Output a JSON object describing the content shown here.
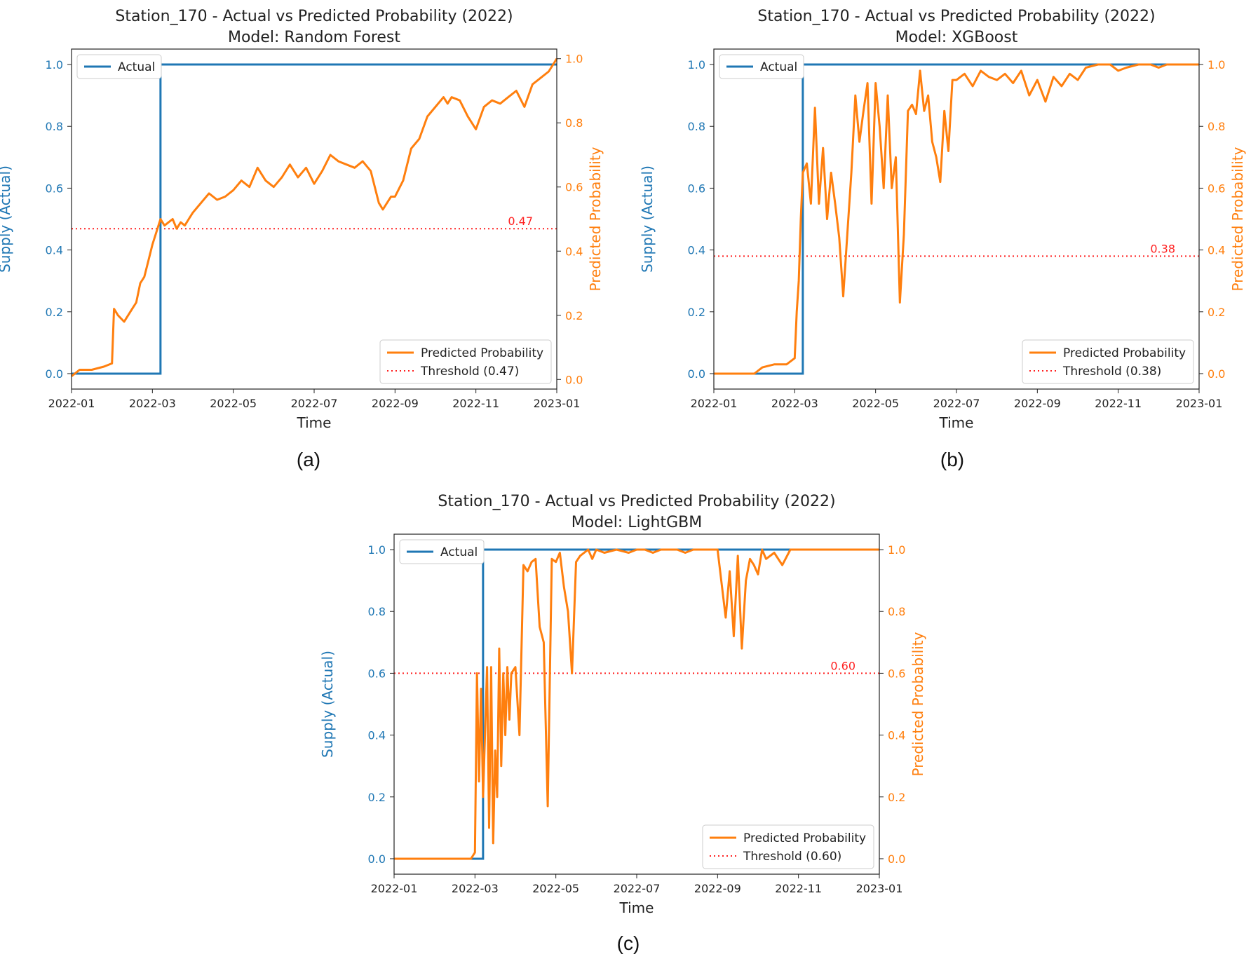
{
  "chart_data": [
    {
      "type": "line",
      "panel_label": "(a)",
      "title": "Station_170 - Actual vs Predicted Probability (2022)",
      "subtitle": "Model: Random Forest",
      "xlabel": "Time",
      "ylabel_left": "Supply (Actual)",
      "ylabel_right": "Predicted Probability",
      "x_range": [
        0,
        12
      ],
      "x_ticks": [
        "2022-01",
        "2022-03",
        "2022-05",
        "2022-07",
        "2022-09",
        "2022-11",
        "2023-01"
      ],
      "left_ylim": [
        -0.05,
        1.05
      ],
      "right_ylim": [
        -0.03,
        1.03
      ],
      "left_y_ticks": [
        "0.0",
        "0.2",
        "0.4",
        "0.6",
        "0.8",
        "1.0"
      ],
      "right_y_ticks": [
        "0.0",
        "0.2",
        "0.4",
        "0.6",
        "0.8",
        "1.0"
      ],
      "threshold": 0.47,
      "threshold_label": "0.47",
      "legend_actual": "Actual",
      "legend_predicted": "Predicted Probability",
      "legend_threshold": "Threshold (0.47)",
      "actual_step": {
        "x_start": 0,
        "step_x": 2.2,
        "x_end": 12.0,
        "low": 0,
        "high": 1
      },
      "predicted": {
        "x": [
          0,
          0.2,
          0.5,
          0.8,
          1.0,
          1.05,
          1.15,
          1.3,
          1.4,
          1.5,
          1.6,
          1.7,
          1.8,
          1.9,
          2.0,
          2.1,
          2.2,
          2.3,
          2.4,
          2.5,
          2.6,
          2.7,
          2.8,
          2.9,
          3.0,
          3.2,
          3.4,
          3.6,
          3.8,
          4.0,
          4.2,
          4.4,
          4.6,
          4.8,
          5.0,
          5.2,
          5.4,
          5.6,
          5.8,
          6.0,
          6.2,
          6.4,
          6.6,
          6.8,
          7.0,
          7.2,
          7.4,
          7.6,
          7.7,
          7.9,
          8.0,
          8.2,
          8.4,
          8.6,
          8.8,
          9.0,
          9.2,
          9.3,
          9.4,
          9.6,
          9.8,
          10.0,
          10.2,
          10.4,
          10.6,
          10.8,
          11.0,
          11.2,
          11.4,
          11.6,
          11.8,
          12.0
        ],
        "y": [
          0.01,
          0.03,
          0.03,
          0.04,
          0.05,
          0.22,
          0.2,
          0.18,
          0.2,
          0.22,
          0.24,
          0.3,
          0.32,
          0.37,
          0.42,
          0.46,
          0.5,
          0.48,
          0.49,
          0.5,
          0.47,
          0.49,
          0.48,
          0.5,
          0.52,
          0.55,
          0.58,
          0.56,
          0.57,
          0.59,
          0.62,
          0.6,
          0.66,
          0.62,
          0.6,
          0.63,
          0.67,
          0.63,
          0.66,
          0.61,
          0.65,
          0.7,
          0.68,
          0.67,
          0.66,
          0.68,
          0.65,
          0.55,
          0.53,
          0.57,
          0.57,
          0.62,
          0.72,
          0.75,
          0.82,
          0.85,
          0.88,
          0.86,
          0.88,
          0.87,
          0.82,
          0.78,
          0.85,
          0.87,
          0.86,
          0.88,
          0.9,
          0.85,
          0.92,
          0.94,
          0.96,
          1.0
        ]
      }
    },
    {
      "type": "line",
      "panel_label": "(b)",
      "title": "Station_170 - Actual vs Predicted Probability (2022)",
      "subtitle": "Model: XGBoost",
      "xlabel": "Time",
      "ylabel_left": "Supply (Actual)",
      "ylabel_right": "Predicted Probability",
      "x_range": [
        0,
        12
      ],
      "x_ticks": [
        "2022-01",
        "2022-03",
        "2022-05",
        "2022-07",
        "2022-09",
        "2022-11",
        "2023-01"
      ],
      "left_ylim": [
        -0.05,
        1.05
      ],
      "right_ylim": [
        -0.05,
        1.05
      ],
      "left_y_ticks": [
        "0.0",
        "0.2",
        "0.4",
        "0.6",
        "0.8",
        "1.0"
      ],
      "right_y_ticks": [
        "0.0",
        "0.2",
        "0.4",
        "0.6",
        "0.8",
        "1.0"
      ],
      "threshold": 0.38,
      "threshold_label": "0.38",
      "legend_actual": "Actual",
      "legend_predicted": "Predicted Probability",
      "legend_threshold": "Threshold (0.38)",
      "actual_step": {
        "x_start": 0,
        "step_x": 2.2,
        "x_end": 11.2,
        "low": 0,
        "high": 1
      },
      "predicted": {
        "x": [
          0,
          0.5,
          1.0,
          1.2,
          1.5,
          1.8,
          2.0,
          2.05,
          2.1,
          2.15,
          2.2,
          2.3,
          2.4,
          2.5,
          2.6,
          2.7,
          2.8,
          2.9,
          3.0,
          3.1,
          3.2,
          3.3,
          3.4,
          3.5,
          3.6,
          3.7,
          3.8,
          3.9,
          4.0,
          4.1,
          4.2,
          4.3,
          4.4,
          4.5,
          4.6,
          4.7,
          4.8,
          4.9,
          5.0,
          5.1,
          5.2,
          5.3,
          5.4,
          5.5,
          5.6,
          5.7,
          5.8,
          5.9,
          6.0,
          6.2,
          6.4,
          6.6,
          6.8,
          7.0,
          7.2,
          7.4,
          7.6,
          7.8,
          8.0,
          8.2,
          8.4,
          8.6,
          8.8,
          9.0,
          9.2,
          9.5,
          9.8,
          10.0,
          10.2,
          10.5,
          10.8,
          11.0,
          11.2,
          11.5,
          12.0
        ],
        "y": [
          0.0,
          0.0,
          0.0,
          0.02,
          0.03,
          0.03,
          0.05,
          0.2,
          0.3,
          0.5,
          0.65,
          0.68,
          0.55,
          0.86,
          0.55,
          0.73,
          0.5,
          0.65,
          0.55,
          0.44,
          0.25,
          0.45,
          0.65,
          0.9,
          0.75,
          0.85,
          0.94,
          0.55,
          0.94,
          0.8,
          0.6,
          0.9,
          0.6,
          0.7,
          0.23,
          0.45,
          0.85,
          0.87,
          0.84,
          0.98,
          0.85,
          0.9,
          0.75,
          0.7,
          0.62,
          0.85,
          0.72,
          0.95,
          0.95,
          0.97,
          0.93,
          0.98,
          0.96,
          0.95,
          0.97,
          0.94,
          0.98,
          0.9,
          0.95,
          0.88,
          0.96,
          0.93,
          0.97,
          0.95,
          0.99,
          1.0,
          1.0,
          0.98,
          0.99,
          1.0,
          1.0,
          0.99,
          1.0,
          1.0,
          1.0
        ]
      }
    },
    {
      "type": "line",
      "panel_label": "(c)",
      "title": "Station_170 - Actual vs Predicted Probability (2022)",
      "subtitle": "Model: LightGBM",
      "xlabel": "Time",
      "ylabel_left": "Supply (Actual)",
      "ylabel_right": "Predicted Probability",
      "x_range": [
        0,
        12
      ],
      "x_ticks": [
        "2022-01",
        "2022-03",
        "2022-05",
        "2022-07",
        "2022-09",
        "2022-11",
        "2023-01"
      ],
      "left_ylim": [
        -0.05,
        1.05
      ],
      "right_ylim": [
        -0.05,
        1.05
      ],
      "left_y_ticks": [
        "0.0",
        "0.2",
        "0.4",
        "0.6",
        "0.8",
        "1.0"
      ],
      "right_y_ticks": [
        "0.0",
        "0.2",
        "0.4",
        "0.6",
        "0.8",
        "1.0"
      ],
      "threshold": 0.6,
      "threshold_label": "0.60",
      "legend_actual": "Actual",
      "legend_predicted": "Predicted Probability",
      "legend_threshold": "Threshold (0.60)",
      "actual_step": {
        "x_start": 0,
        "step_x": 2.2,
        "x_end": 11.2,
        "low": 0,
        "high": 1
      },
      "predicted": {
        "x": [
          0,
          1.0,
          1.9,
          2.0,
          2.05,
          2.1,
          2.15,
          2.2,
          2.3,
          2.35,
          2.4,
          2.45,
          2.5,
          2.55,
          2.6,
          2.65,
          2.7,
          2.75,
          2.8,
          2.85,
          2.9,
          3.0,
          3.1,
          3.2,
          3.3,
          3.4,
          3.5,
          3.6,
          3.7,
          3.8,
          3.9,
          4.0,
          4.1,
          4.2,
          4.3,
          4.4,
          4.5,
          4.6,
          4.7,
          4.8,
          4.9,
          5.0,
          5.2,
          5.5,
          5.8,
          6.0,
          6.2,
          6.4,
          6.6,
          6.8,
          7.0,
          7.2,
          7.4,
          7.6,
          7.8,
          8.0,
          8.2,
          8.3,
          8.4,
          8.5,
          8.6,
          8.7,
          8.8,
          8.9,
          9.0,
          9.1,
          9.2,
          9.4,
          9.6,
          9.8,
          10.0,
          10.5,
          11.0,
          11.5,
          12.0
        ],
        "y": [
          0.0,
          0.0,
          0.0,
          0.02,
          0.6,
          0.25,
          0.55,
          0.2,
          0.62,
          0.1,
          0.62,
          0.05,
          0.35,
          0.2,
          0.68,
          0.3,
          0.6,
          0.4,
          0.62,
          0.45,
          0.6,
          0.62,
          0.4,
          0.95,
          0.93,
          0.96,
          0.97,
          0.75,
          0.7,
          0.17,
          0.97,
          0.96,
          0.99,
          0.88,
          0.8,
          0.6,
          0.96,
          0.98,
          0.99,
          1.0,
          0.97,
          1.0,
          0.99,
          1.0,
          0.99,
          1.0,
          1.0,
          0.99,
          1.0,
          1.0,
          1.0,
          0.99,
          1.0,
          1.0,
          1.0,
          1.0,
          0.78,
          0.93,
          0.72,
          0.98,
          0.68,
          0.9,
          0.97,
          0.95,
          0.92,
          1.0,
          0.97,
          0.99,
          0.95,
          1.0,
          1.0,
          1.0,
          1.0,
          1.0,
          1.0
        ]
      }
    }
  ],
  "colors": {
    "actual": "#1f77b4",
    "predicted": "#ff7f0e",
    "threshold": "#ff2020",
    "left_axis": "#1f77b4",
    "right_axis": "#ff7f0e"
  }
}
